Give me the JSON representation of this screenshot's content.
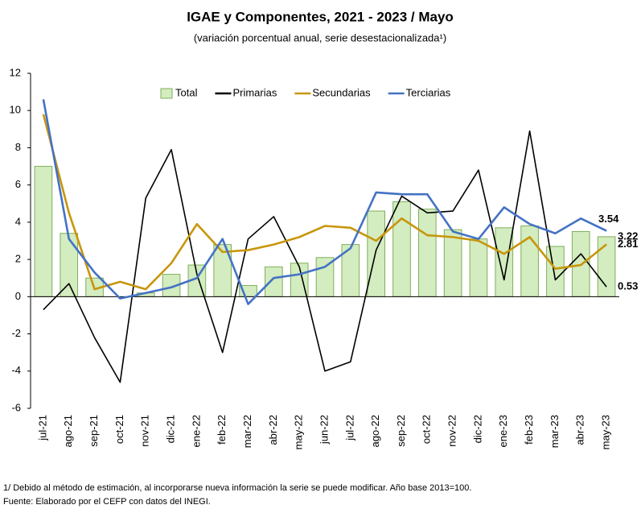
{
  "chart_data": {
    "type": "bar-line",
    "title": "IGAE y Componentes, 2021 - 2023 / Mayo",
    "subtitle": "(variación porcentual anual, serie desestacionalizada¹)",
    "categories": [
      "jul-21",
      "ago-21",
      "sep-21",
      "oct-21",
      "nov-21",
      "dic-21",
      "ene-22",
      "feb-22",
      "mar-22",
      "abr-22",
      "may-22",
      "jun-22",
      "jul-22",
      "ago-22",
      "sep-22",
      "oct-22",
      "nov-22",
      "dic-22",
      "ene-23",
      "feb-23",
      "mar-23",
      "abr-23",
      "may-23"
    ],
    "series": [
      {
        "name": "Total",
        "type": "bar",
        "color": "#d3ecc0",
        "label_color": "#9bc77c",
        "values": [
          7.0,
          3.4,
          1.0,
          0.0,
          0.2,
          1.2,
          1.7,
          2.8,
          0.6,
          1.6,
          1.8,
          2.1,
          2.8,
          4.6,
          5.1,
          4.7,
          3.6,
          3.1,
          3.7,
          3.8,
          2.7,
          3.5,
          3.22
        ]
      },
      {
        "name": "Primarias",
        "type": "line",
        "color": "#000000",
        "label_color": "#000000",
        "values": [
          -0.7,
          0.7,
          -2.2,
          -4.6,
          5.3,
          7.9,
          1.2,
          -3.0,
          3.1,
          4.3,
          1.6,
          -4.0,
          -3.5,
          2.5,
          5.4,
          4.5,
          4.6,
          6.8,
          0.9,
          8.9,
          0.9,
          2.3,
          0.53
        ]
      },
      {
        "name": "Secundarias",
        "type": "line",
        "color": "#c8960c",
        "label_color": "#c8960c",
        "values": [
          9.8,
          4.5,
          0.4,
          0.8,
          0.4,
          1.8,
          3.9,
          2.4,
          2.5,
          2.8,
          3.2,
          3.8,
          3.7,
          3.0,
          4.2,
          3.3,
          3.2,
          3.0,
          2.3,
          3.2,
          1.5,
          1.7,
          2.81
        ]
      },
      {
        "name": "Terciarias",
        "type": "line",
        "color": "#4472c4",
        "label_color": "#2e75b6",
        "values": [
          10.6,
          3.1,
          1.3,
          -0.1,
          0.2,
          0.5,
          1.0,
          3.1,
          -0.4,
          1.0,
          1.2,
          1.6,
          2.6,
          5.6,
          5.5,
          5.5,
          3.5,
          3.1,
          4.8,
          3.9,
          3.4,
          4.2,
          3.54
        ]
      }
    ],
    "ylim": [
      -6,
      12
    ],
    "yticks": [
      -6,
      -4,
      -2,
      0,
      2,
      4,
      6,
      8,
      10,
      12
    ],
    "grid": false,
    "legend": "top",
    "footnotes": [
      "1/ Debido al método de estimación, al incorporarse nueva información la serie se puede modificar. Año base 2013=100.",
      "Fuente: Elaborado por el CEFP con datos del INEGI."
    ]
  }
}
